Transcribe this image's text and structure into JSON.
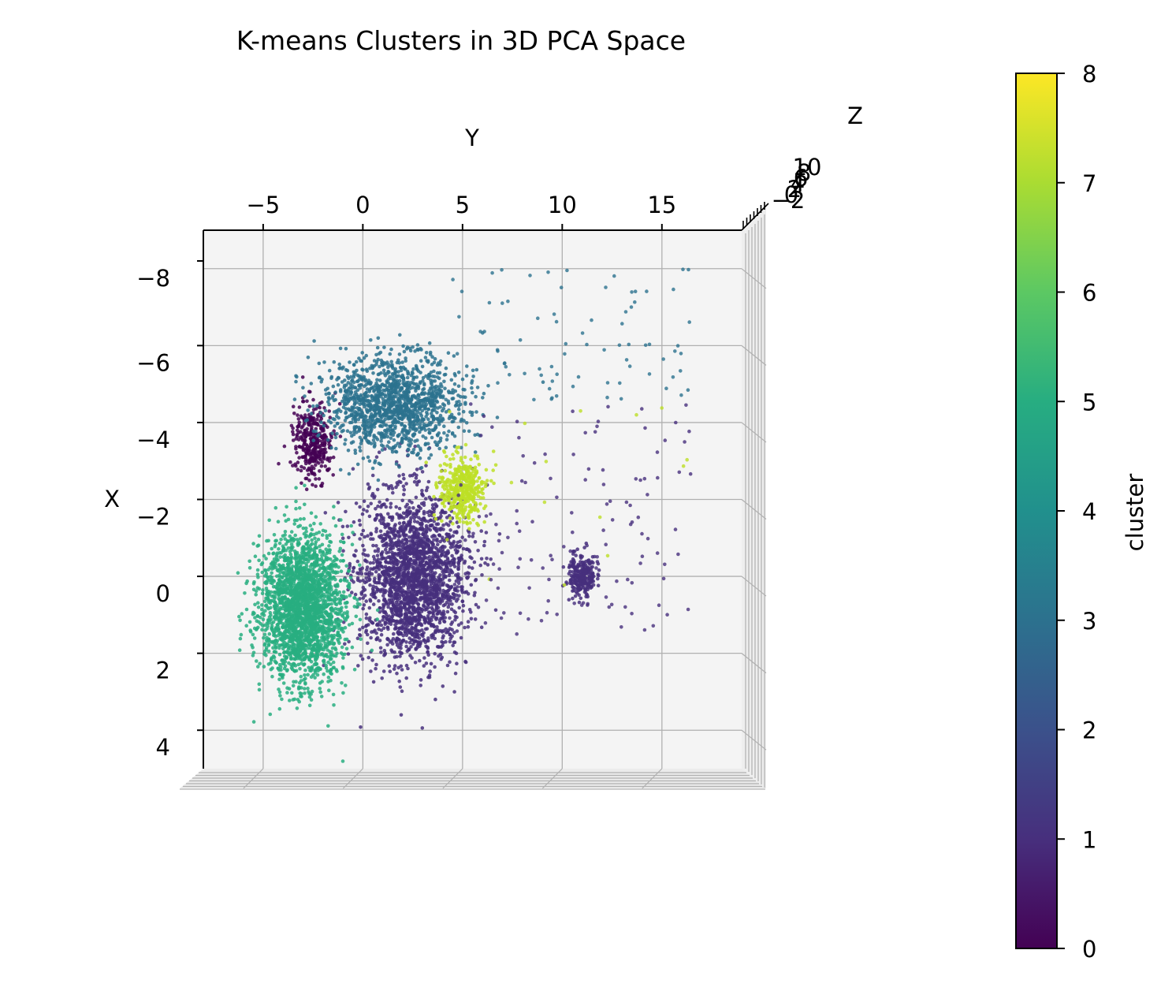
{
  "chart_data": {
    "type": "scatter",
    "projection": "3d",
    "title": "K-means Clusters in 3D PCA Space",
    "xlabel": "X",
    "ylabel": "Y",
    "zlabel": "Z",
    "y_ticks": [
      "−5",
      "0",
      "5",
      "10",
      "15"
    ],
    "y_tick_values": [
      -5,
      0,
      5,
      10,
      15
    ],
    "y_lim": [
      -8,
      19
    ],
    "x_ticks": [
      "−8",
      "−6",
      "−4",
      "−2",
      "0",
      "2",
      "4"
    ],
    "x_tick_values": [
      -8,
      -6,
      -4,
      -2,
      0,
      2,
      4
    ],
    "x_lim": [
      -9,
      5
    ],
    "z_ticks": [
      "−2",
      "0",
      "2",
      "4",
      "6",
      "8",
      "10"
    ],
    "colorbar": {
      "label": "cluster",
      "ticks": [
        "0",
        "1",
        "2",
        "3",
        "4",
        "5",
        "6",
        "7",
        "8"
      ],
      "min": 0,
      "max": 8,
      "colormap": "viridis"
    },
    "clusters": [
      {
        "id": 0,
        "color": "#440154",
        "y_center": -2.5,
        "x_center": -3.5,
        "y_spread": 0.9,
        "x_spread": 0.9
      },
      {
        "id": 1,
        "color": "#472f7d",
        "y_center": 2.5,
        "x_center": 0.0,
        "y_spread": 2.4,
        "x_spread": 2.0
      },
      {
        "id": 1,
        "color": "#472f7d",
        "y_center": 11.0,
        "x_center": 0.0,
        "y_spread": 0.6,
        "x_spread": 0.5
      },
      {
        "id": 3,
        "color": "#2c728e",
        "y_center": 1.5,
        "x_center": -4.5,
        "y_spread": 3.2,
        "x_spread": 1.1
      },
      {
        "id": 5,
        "color": "#28ae80",
        "y_center": -3.0,
        "x_center": 0.8,
        "y_spread": 1.9,
        "x_spread": 1.7
      },
      {
        "id": 7,
        "color": "#bddf26",
        "y_center": 5.0,
        "x_center": -2.3,
        "y_spread": 1.0,
        "x_spread": 0.8
      }
    ]
  }
}
